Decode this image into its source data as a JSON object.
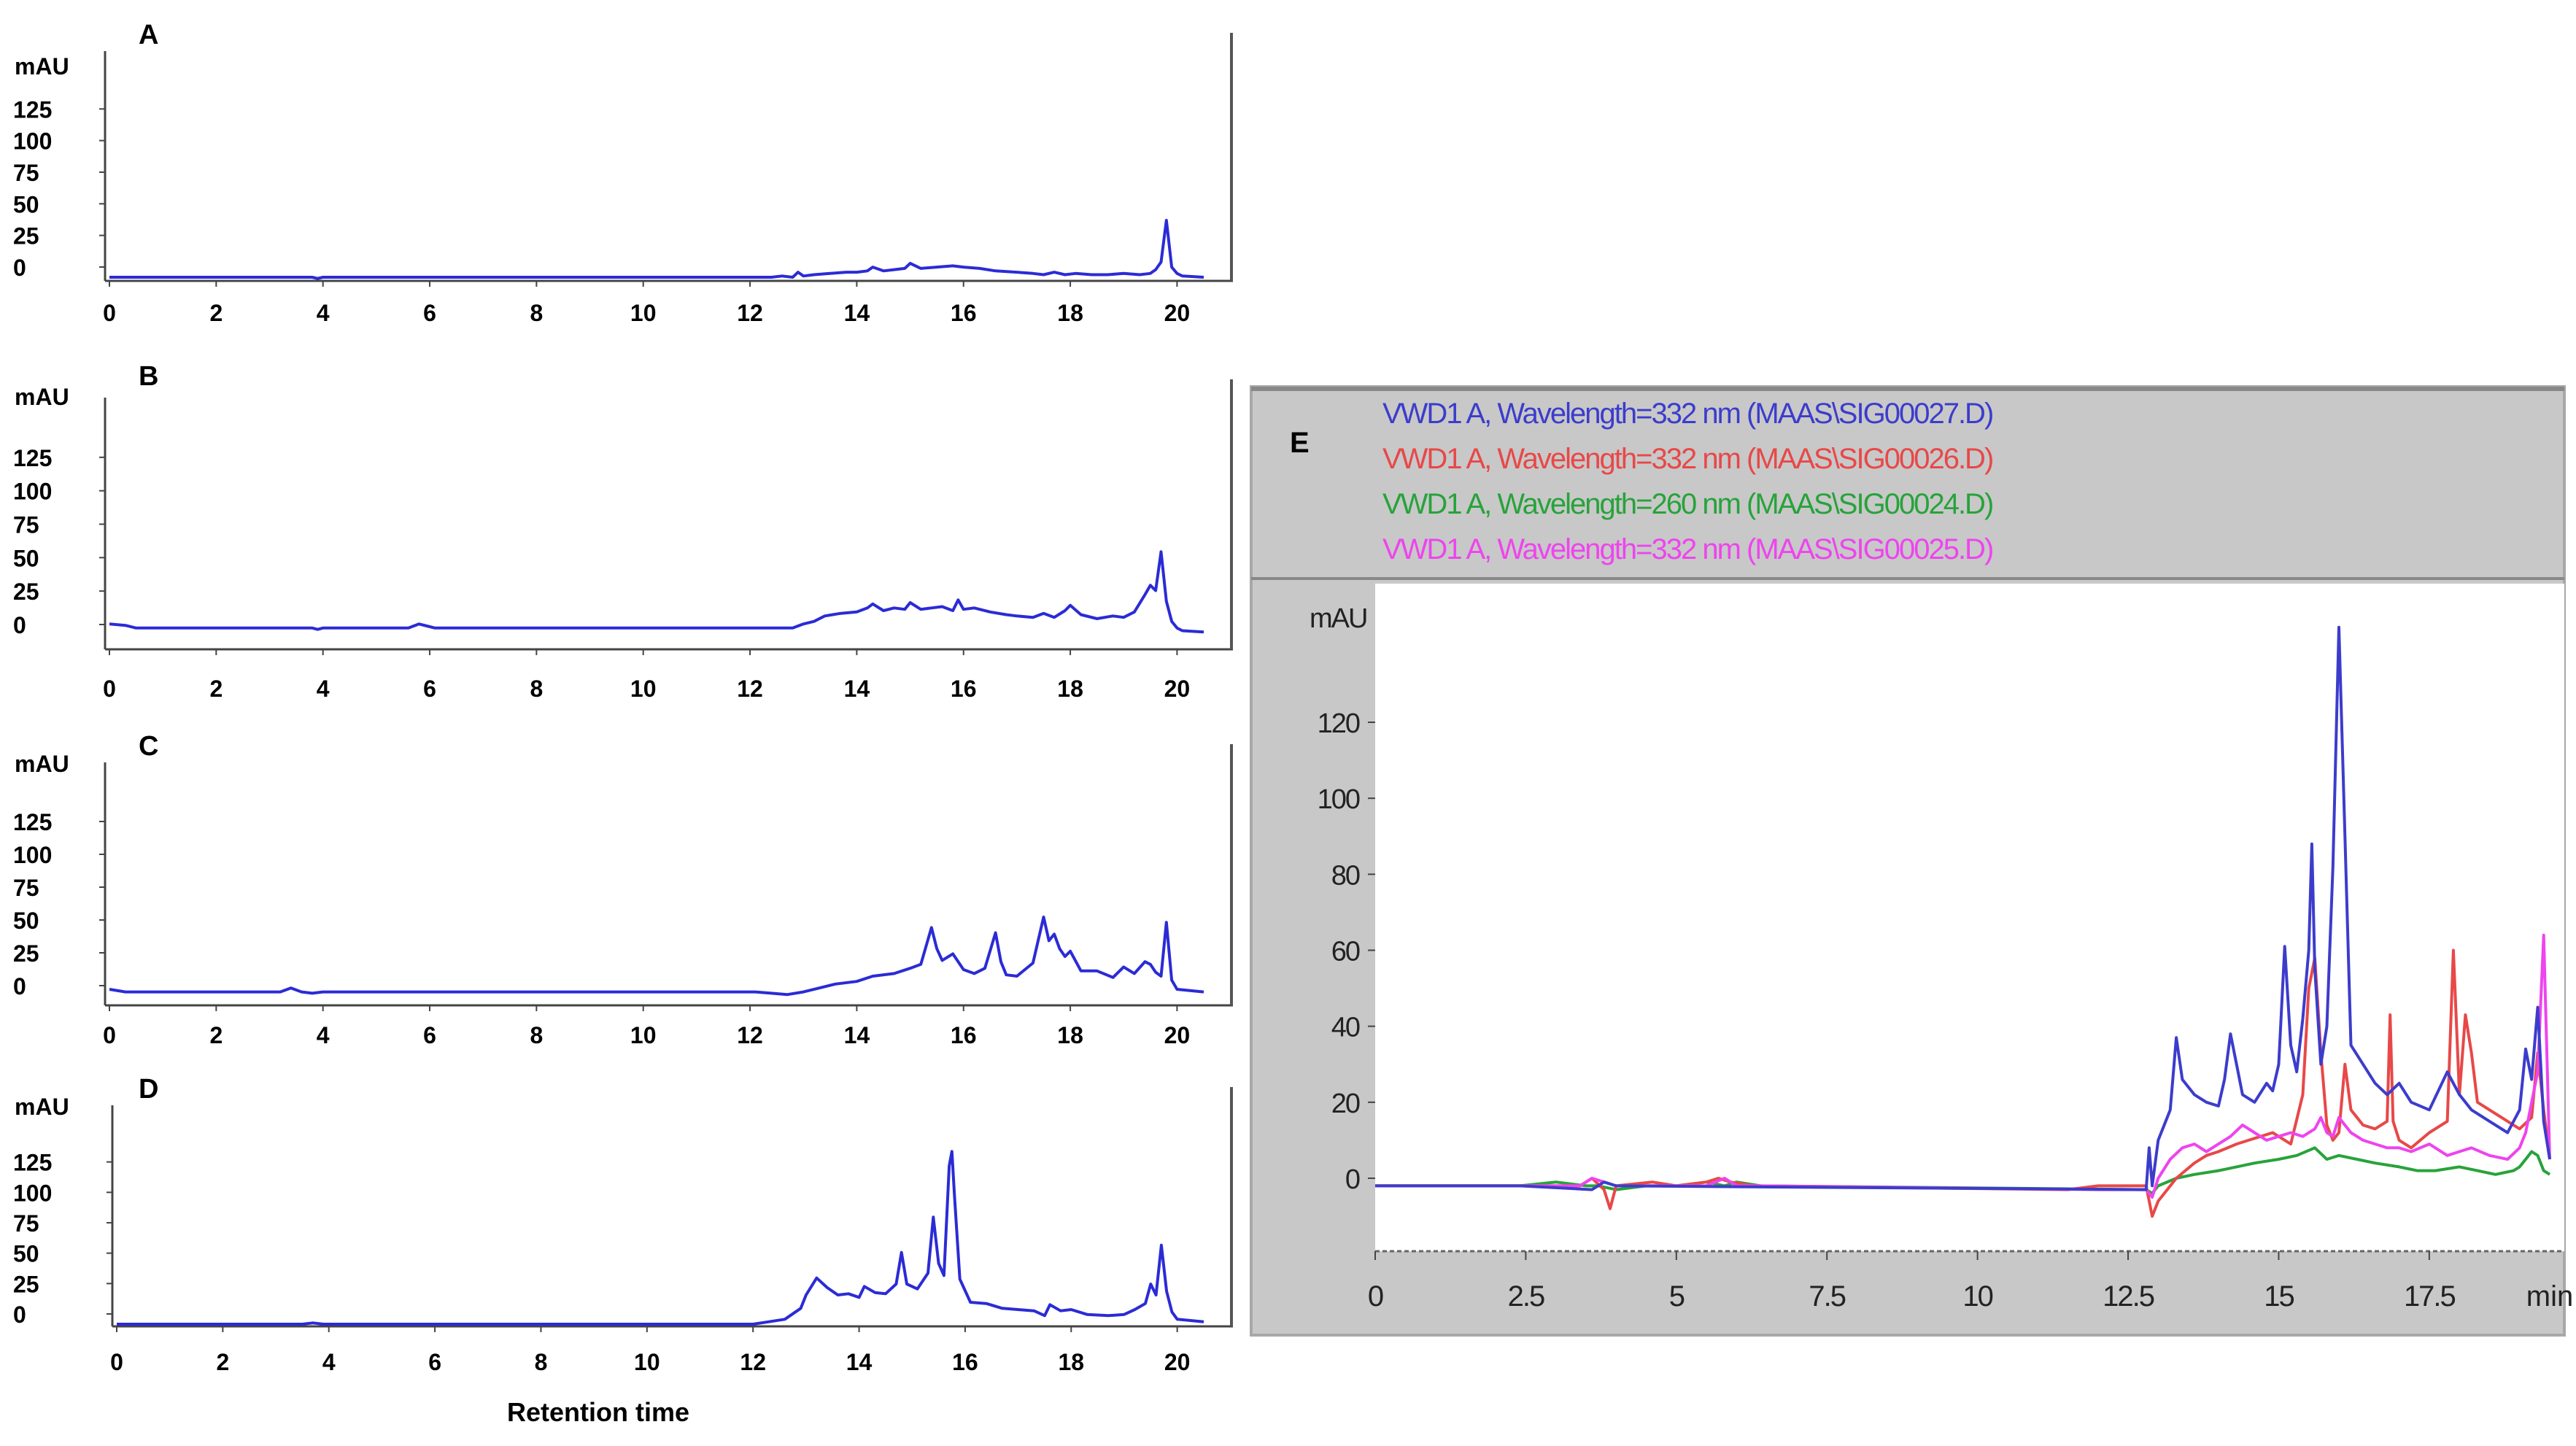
{
  "figure": {
    "xlabel": "Retention time"
  },
  "chart_data": [
    {
      "type": "line",
      "panel": "A",
      "ylabel": "mAU",
      "x_ticks": [
        0,
        2,
        4,
        6,
        8,
        10,
        12,
        14,
        16,
        18,
        20
      ],
      "y_ticks": [
        0,
        25,
        50,
        75,
        100,
        125
      ],
      "xlim": [
        0,
        20.5
      ],
      "ylim": [
        0,
        150
      ],
      "grid": false,
      "color": "#2b2bd6",
      "series": [
        {
          "x": [
            0,
            3.8,
            3.9,
            4.0,
            12.4,
            12.6,
            12.8,
            12.9,
            13.0,
            13.2,
            13.5,
            13.8,
            14.0,
            14.2,
            14.3,
            14.5,
            14.7,
            14.9,
            15.0,
            15.2,
            15.5,
            15.8,
            16.0,
            16.3,
            16.6,
            17.0,
            17.3,
            17.5,
            17.7,
            17.9,
            18.1,
            18.4,
            18.7,
            19.0,
            19.3,
            19.5,
            19.6,
            19.7,
            19.8,
            19.9,
            20.0,
            20.1,
            20.5
          ],
          "y": [
            0,
            0,
            -1,
            0,
            0,
            1,
            0,
            4,
            1,
            2,
            3,
            4,
            4,
            5,
            8,
            5,
            6,
            7,
            11,
            7,
            8,
            9,
            8,
            7,
            5,
            4,
            3,
            2,
            4,
            2,
            3,
            2,
            2,
            3,
            2,
            3,
            6,
            12,
            45,
            8,
            3,
            1,
            0
          ]
        }
      ]
    },
    {
      "type": "line",
      "panel": "B",
      "ylabel": "mAU",
      "x_ticks": [
        0,
        2,
        4,
        6,
        8,
        10,
        12,
        14,
        16,
        18,
        20
      ],
      "y_ticks": [
        0,
        25,
        50,
        75,
        100,
        125
      ],
      "xlim": [
        0,
        20.5
      ],
      "ylim": [
        0,
        150
      ],
      "grid": false,
      "color": "#2b2bd6",
      "series": [
        {
          "x": [
            0,
            0.3,
            0.5,
            3.8,
            3.9,
            4.0,
            5.6,
            5.8,
            6.0,
            6.1,
            12.4,
            12.8,
            13.0,
            13.2,
            13.4,
            13.7,
            14.0,
            14.2,
            14.3,
            14.5,
            14.7,
            14.9,
            15.0,
            15.2,
            15.4,
            15.6,
            15.8,
            15.9,
            16.0,
            16.2,
            16.5,
            16.8,
            17.0,
            17.3,
            17.5,
            17.7,
            17.9,
            18.0,
            18.2,
            18.5,
            18.8,
            19.0,
            19.2,
            19.4,
            19.5,
            19.6,
            19.7,
            19.8,
            19.9,
            20.0,
            20.1,
            20.5
          ],
          "y": [
            8,
            7,
            5,
            5,
            4,
            5,
            5,
            8,
            6,
            5,
            5,
            5,
            8,
            10,
            14,
            16,
            17,
            20,
            23,
            18,
            20,
            19,
            24,
            19,
            20,
            21,
            18,
            26,
            19,
            20,
            17,
            15,
            14,
            13,
            16,
            13,
            18,
            22,
            15,
            12,
            14,
            13,
            17,
            30,
            37,
            33,
            62,
            25,
            10,
            5,
            3,
            2
          ]
        }
      ]
    },
    {
      "type": "line",
      "panel": "C",
      "ylabel": "mAU",
      "x_ticks": [
        0,
        2,
        4,
        6,
        8,
        10,
        12,
        14,
        16,
        18,
        20
      ],
      "y_ticks": [
        0,
        25,
        50,
        75,
        100,
        125
      ],
      "xlim": [
        0,
        20.5
      ],
      "ylim": [
        0,
        150
      ],
      "grid": false,
      "color": "#2b2bd6",
      "series": [
        {
          "x": [
            0,
            0.3,
            3.2,
            3.4,
            3.6,
            3.8,
            4.0,
            4.3,
            12.1,
            12.4,
            12.7,
            13.0,
            13.3,
            13.6,
            14.0,
            14.3,
            14.7,
            15.0,
            15.2,
            15.4,
            15.5,
            15.6,
            15.8,
            16.0,
            16.2,
            16.4,
            16.6,
            16.7,
            16.8,
            17.0,
            17.3,
            17.5,
            17.6,
            17.7,
            17.8,
            17.9,
            18.0,
            18.2,
            18.5,
            18.8,
            19.0,
            19.2,
            19.4,
            19.5,
            19.6,
            19.7,
            19.8,
            19.9,
            20.0,
            20.5
          ],
          "y": [
            5,
            3,
            3,
            6,
            3,
            2,
            3,
            3,
            3,
            2,
            1,
            3,
            6,
            9,
            11,
            15,
            17,
            21,
            24,
            52,
            36,
            27,
            32,
            20,
            17,
            21,
            48,
            26,
            16,
            15,
            25,
            60,
            42,
            47,
            36,
            30,
            34,
            19,
            19,
            14,
            22,
            17,
            26,
            24,
            18,
            15,
            56,
            12,
            5,
            3
          ]
        }
      ]
    },
    {
      "type": "line",
      "panel": "D",
      "ylabel": "mAU",
      "x_ticks": [
        0,
        2,
        4,
        6,
        8,
        10,
        12,
        14,
        16,
        18,
        20
      ],
      "y_ticks": [
        0,
        25,
        50,
        75,
        100,
        125
      ],
      "xlim": [
        0,
        20.5
      ],
      "ylim": [
        0,
        150
      ],
      "grid": false,
      "color": "#2b2bd6",
      "series": [
        {
          "x": [
            0,
            3.5,
            3.7,
            3.9,
            12.0,
            12.3,
            12.6,
            12.9,
            13.0,
            13.2,
            13.4,
            13.6,
            13.8,
            14.0,
            14.1,
            14.3,
            14.5,
            14.7,
            14.8,
            14.9,
            15.1,
            15.3,
            15.4,
            15.5,
            15.6,
            15.7,
            15.75,
            15.8,
            15.9,
            16.1,
            16.4,
            16.7,
            17.0,
            17.3,
            17.5,
            17.6,
            17.8,
            18.0,
            18.3,
            18.7,
            19.0,
            19.2,
            19.4,
            19.5,
            19.6,
            19.7,
            19.8,
            19.9,
            20.0,
            20.5
          ],
          "y": [
            0,
            0,
            1,
            0,
            0,
            2,
            4,
            13,
            24,
            38,
            30,
            24,
            25,
            22,
            31,
            26,
            25,
            33,
            59,
            33,
            29,
            42,
            88,
            50,
            40,
            130,
            142,
            105,
            37,
            18,
            17,
            13,
            12,
            11,
            7,
            16,
            11,
            12,
            8,
            7,
            8,
            12,
            17,
            33,
            24,
            65,
            27,
            10,
            4,
            2
          ]
        }
      ]
    },
    {
      "type": "line",
      "panel": "E",
      "ylabel": "mAU",
      "xlabel": "min",
      "x_ticks": [
        0,
        2.5,
        5,
        7.5,
        10,
        12.5,
        15,
        17.5
      ],
      "y_ticks": [
        0,
        20,
        40,
        60,
        80,
        100,
        120
      ],
      "xlim": [
        0,
        19.5
      ],
      "ylim": [
        -20,
        150
      ],
      "grid": false,
      "legend_position": "top",
      "series": [
        {
          "name": "VWD1 A, Wavelength=332 nm (MAAS\\SIG00027.D)",
          "color": "#3c3ccc",
          "x": [
            0,
            2.4,
            3.6,
            3.8,
            4.0,
            12.8,
            12.85,
            12.9,
            13.0,
            13.2,
            13.3,
            13.4,
            13.6,
            13.8,
            14.0,
            14.1,
            14.2,
            14.3,
            14.4,
            14.6,
            14.8,
            14.9,
            15.0,
            15.1,
            15.2,
            15.3,
            15.4,
            15.5,
            15.55,
            15.6,
            15.7,
            15.8,
            15.9,
            16.0,
            16.1,
            16.2,
            16.4,
            16.6,
            16.8,
            17.0,
            17.2,
            17.5,
            17.8,
            18.0,
            18.2,
            18.5,
            18.8,
            19.0,
            19.1,
            19.2,
            19.3,
            19.4,
            19.5
          ],
          "y": [
            -2,
            -2,
            -3,
            -1,
            -2,
            -3,
            8,
            -2,
            10,
            18,
            37,
            26,
            22,
            20,
            19,
            26,
            38,
            30,
            22,
            20,
            25,
            23,
            30,
            61,
            35,
            28,
            42,
            60,
            88,
            55,
            30,
            40,
            82,
            145,
            90,
            35,
            30,
            25,
            22,
            25,
            20,
            18,
            28,
            22,
            18,
            15,
            12,
            18,
            34,
            26,
            45,
            15,
            5
          ]
        },
        {
          "name": "VWD1 A, Wavelength=332 nm (MAAS\\SIG00026.D)",
          "color": "#e84848",
          "x": [
            0,
            2.4,
            3.4,
            3.6,
            3.8,
            3.9,
            4.0,
            4.6,
            5.0,
            5.5,
            5.7,
            5.9,
            6.3,
            11.5,
            12.0,
            12.8,
            12.9,
            13.0,
            13.3,
            13.6,
            13.8,
            14.0,
            14.3,
            14.5,
            14.7,
            14.9,
            15.0,
            15.2,
            15.4,
            15.5,
            15.6,
            15.7,
            15.8,
            15.9,
            16.0,
            16.1,
            16.2,
            16.4,
            16.6,
            16.8,
            16.85,
            16.9,
            17.0,
            17.2,
            17.5,
            17.8,
            17.9,
            18.0,
            18.1,
            18.2,
            18.3,
            18.5,
            18.8,
            19.0,
            19.2,
            19.3,
            19.4,
            19.5
          ],
          "y": [
            -2,
            -2,
            -2,
            0,
            -3,
            -8,
            -2,
            -1,
            -2,
            -1,
            0,
            -1,
            -2,
            -3,
            -2,
            -2,
            -10,
            -6,
            0,
            4,
            6,
            7,
            9,
            10,
            11,
            12,
            11,
            9,
            22,
            50,
            58,
            33,
            14,
            10,
            12,
            30,
            18,
            14,
            13,
            15,
            43,
            15,
            10,
            8,
            12,
            15,
            60,
            22,
            43,
            33,
            20,
            18,
            15,
            13,
            16,
            33,
            18,
            5
          ]
        },
        {
          "name": "VWD1 A, Wavelength=260 nm (MAAS\\SIG00024.D)",
          "color": "#27a33a",
          "x": [
            0,
            2.4,
            3.0,
            3.5,
            3.7,
            4.0,
            4.5,
            5.0,
            5.5,
            5.8,
            6.0,
            6.4,
            12.8,
            12.9,
            13.0,
            13.3,
            13.6,
            14.0,
            14.3,
            14.6,
            15.0,
            15.3,
            15.6,
            15.8,
            16.0,
            16.3,
            16.6,
            17.0,
            17.3,
            17.6,
            18.0,
            18.3,
            18.6,
            18.9,
            19.0,
            19.1,
            19.2,
            19.3,
            19.4,
            19.5
          ],
          "y": [
            -2,
            -2,
            -1,
            -2,
            -2,
            -3,
            -2,
            -2,
            -1,
            -2,
            -1,
            -2,
            -3,
            -4,
            -2,
            0,
            1,
            2,
            3,
            4,
            5,
            6,
            8,
            5,
            6,
            5,
            4,
            3,
            2,
            2,
            3,
            2,
            1,
            2,
            3,
            5,
            7,
            6,
            2,
            1
          ]
        },
        {
          "name": "VWD1 A, Wavelength=332 nm (MAAS\\SIG00025.D)",
          "color": "#ee44ee",
          "x": [
            0,
            2.4,
            3.4,
            3.6,
            3.8,
            4.0,
            4.6,
            5.5,
            5.8,
            6.0,
            6.4,
            12.0,
            12.8,
            12.9,
            13.0,
            13.2,
            13.4,
            13.6,
            13.8,
            14.0,
            14.2,
            14.4,
            14.6,
            14.8,
            15.0,
            15.2,
            15.4,
            15.6,
            15.7,
            15.8,
            15.9,
            16.0,
            16.2,
            16.4,
            16.6,
            16.8,
            17.0,
            17.2,
            17.5,
            17.8,
            18.0,
            18.2,
            18.5,
            18.8,
            19.0,
            19.1,
            19.2,
            19.3,
            19.4,
            19.5
          ],
          "y": [
            -2,
            -2,
            -2,
            0,
            -1,
            -2,
            -2,
            -2,
            0,
            -2,
            -2,
            -3,
            -3,
            -5,
            0,
            5,
            8,
            9,
            7,
            9,
            11,
            14,
            12,
            10,
            11,
            12,
            11,
            13,
            16,
            12,
            11,
            16,
            12,
            10,
            9,
            8,
            8,
            7,
            9,
            6,
            7,
            8,
            6,
            5,
            8,
            12,
            20,
            28,
            64,
            5
          ]
        }
      ]
    }
  ]
}
